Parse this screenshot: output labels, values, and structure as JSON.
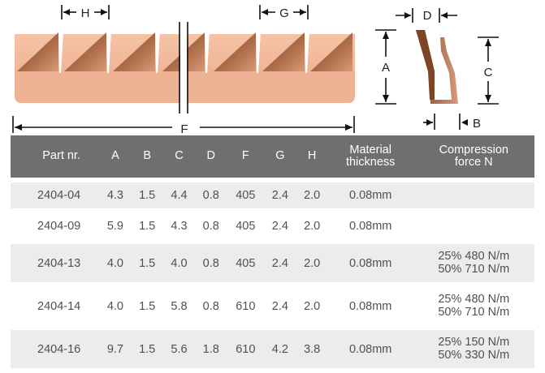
{
  "diagram": {
    "labels": {
      "H": "H",
      "G": "G",
      "F": "F",
      "D": "D",
      "A": "A",
      "C": "C",
      "B": "B"
    },
    "colors": {
      "strip_light": "#f0b394",
      "strip_dark": "#8f5433",
      "strip_mid": "#c98663",
      "line": "#111111"
    }
  },
  "table": {
    "headers": [
      "Part nr.",
      "A",
      "B",
      "C",
      "D",
      "F",
      "G",
      "H",
      "Material\nthickness",
      "Compression\nforce N"
    ],
    "rows": [
      {
        "part": "2404-04",
        "A": "4.3",
        "B": "1.5",
        "C": "4.4",
        "D": "0.8",
        "F": "405",
        "G": "2.4",
        "H": "2.0",
        "thickness": "0.08mm",
        "force": ""
      },
      {
        "part": "2404-09",
        "A": "5.9",
        "B": "1.5",
        "C": "4.3",
        "D": "0.8",
        "F": "405",
        "G": "2.4",
        "H": "2.0",
        "thickness": "0.08mm",
        "force": ""
      },
      {
        "part": "2404-13",
        "A": "4.0",
        "B": "1.5",
        "C": "4.0",
        "D": "0.8",
        "F": "405",
        "G": "2.4",
        "H": "2.0",
        "thickness": "0.08mm",
        "force": "25% 480 N/m\n50% 710 N/m"
      },
      {
        "part": "2404-14",
        "A": "4.0",
        "B": "1.5",
        "C": "5.8",
        "D": "0.8",
        "F": "610",
        "G": "2.4",
        "H": "2.0",
        "thickness": "0.08mm",
        "force": "25% 480 N/m\n50% 710 N/m"
      },
      {
        "part": "2404-16",
        "A": "9.7",
        "B": "1.5",
        "C": "5.6",
        "D": "1.8",
        "F": "610",
        "G": "4.2",
        "H": "3.8",
        "thickness": "0.08mm",
        "force": "25% 150 N/m\n50% 330 N/m"
      }
    ],
    "colors": {
      "header_bg": "#6e6f71",
      "header_text": "#ffffff",
      "stripe": "#ececec"
    }
  }
}
